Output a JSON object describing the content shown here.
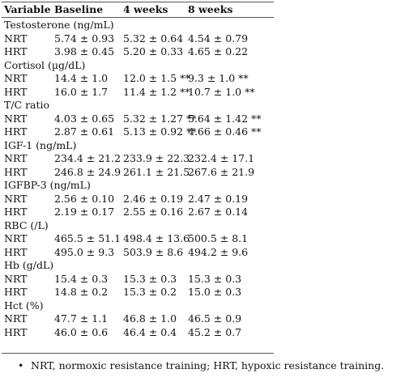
{
  "table": {
    "header": [
      "Variable",
      "Baseline",
      "4 weeks",
      "8 weeks"
    ],
    "sections": [
      {
        "label": "Testosterone (ng/mL)",
        "rows": [
          [
            "NRT",
            "5.74 ± 0.93",
            "5.32 ± 0.64",
            "4.54 ± 0.79"
          ],
          [
            "HRT",
            "3.98 ± 0.45",
            "5.20 ± 0.33",
            "4.65 ± 0.22"
          ]
        ]
      },
      {
        "label": "Cortisol (µg/dL)",
        "rows": [
          [
            "NRT",
            "14.4 ± 1.0",
            "12.0 ± 1.5 **",
            "9.3 ± 1.0 **"
          ],
          [
            "HRT",
            "16.0 ± 1.7",
            "11.4 ± 1.2 **",
            "10.7 ± 1.0 **"
          ]
        ]
      },
      {
        "label": "T/C ratio",
        "rows": [
          [
            "NRT",
            "4.03 ± 0.65",
            "5.32 ± 1.27 **",
            "5.64 ± 1.42 **"
          ],
          [
            "HRT",
            "2.87 ± 0.61",
            "5.13 ± 0.92 **",
            "4.66 ± 0.46 **"
          ]
        ]
      },
      {
        "label": "IGF-1 (ng/mL)",
        "rows": [
          [
            "NRT",
            "234.4 ± 21.2",
            "233.9 ± 22.3",
            "232.4 ± 17.1"
          ],
          [
            "HRT",
            "246.8 ± 24.9",
            "261.1 ± 21.5",
            "267.6 ± 21.9"
          ]
        ]
      },
      {
        "label": "IGFBP-3 (ng/mL)",
        "rows": [
          [
            "NRT",
            "2.56 ± 0.10",
            "2.46 ± 0.19",
            "2.47 ± 0.19"
          ],
          [
            "HRT",
            "2.19 ± 0.17",
            "2.55 ± 0.16",
            "2.67 ± 0.14"
          ]
        ]
      },
      {
        "label": "RBC (/L)",
        "rows": [
          [
            "NRT",
            "465.5 ± 51.1",
            "498.4 ± 13.6",
            "500.5 ± 8.1"
          ],
          [
            "HRT",
            "495.0 ± 9.3",
            "503.9 ± 8.6",
            "494.2 ± 9.6"
          ]
        ]
      },
      {
        "label": "Hb (g/dL)",
        "rows": [
          [
            "NRT",
            "15.4 ± 0.3",
            "15.3 ± 0.3",
            "15.3 ± 0.3"
          ],
          [
            "HRT",
            "14.8 ± 0.2",
            "15.3 ± 0.2",
            "15.0 ± 0.3"
          ]
        ]
      },
      {
        "label": "Hct (%)",
        "rows": [
          [
            "NRT",
            "47.7 ± 1.1",
            "46.8 ± 1.0",
            "46.5 ± 0.9"
          ],
          [
            "HRT",
            "46.0 ± 0.6",
            "46.4 ± 0.4",
            "45.2 ± 0.7"
          ]
        ]
      }
    ],
    "footnote": "NRT, normoxic resistance training; HRT, hypoxic resistance training."
  }
}
